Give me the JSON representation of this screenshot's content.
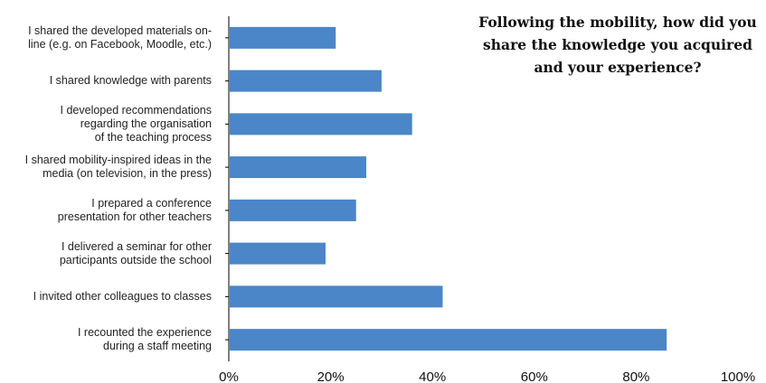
{
  "chart_data": {
    "type": "bar",
    "orientation": "horizontal",
    "title": "Following the mobility, how did you share the knowledge you acquired and your experience?",
    "categories": [
      "I shared the developed materials on-\nline (e.g. on Facebook, Moodle, etc.)",
      "I shared knowledge with parents",
      "I developed recommendations\nregarding the organisation\nof the teaching process",
      "I shared mobility-inspired ideas in the\nmedia (on television, in the press)",
      "I prepared a conference\npresentation for other teachers",
      "I delivered a seminar for other\nparticipants outside the school",
      "I invited other colleagues to classes",
      "I recounted the experience\nduring a staff meeting"
    ],
    "values": [
      21,
      30,
      36,
      27,
      25,
      19,
      42,
      86
    ],
    "xlim": [
      0,
      100
    ],
    "x_ticks": [
      "0%",
      "20%",
      "40%",
      "60%",
      "80%",
      "100%"
    ],
    "bar_color": "#4a86c8",
    "grid": false
  }
}
